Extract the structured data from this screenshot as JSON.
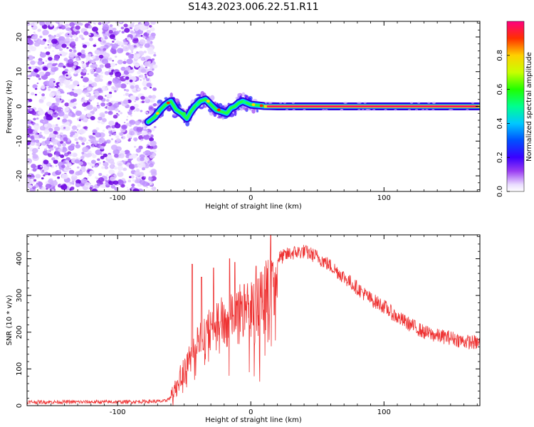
{
  "title": "S143.2023.006.22.51.R11",
  "chart_data": [
    {
      "type": "heatmap",
      "xlabel": "Height of straight line (km)",
      "ylabel": "Frequency (Hz)",
      "xlim": [
        -168,
        172
      ],
      "ylim": [
        -24.5,
        24.5
      ],
      "xticks": [
        -100,
        0,
        100
      ],
      "yticks": [
        -20,
        -10,
        0,
        10,
        20
      ],
      "noise_region_x": [
        -168,
        -75
      ],
      "signal_trace": {
        "x": [
          -77,
          -72,
          -68,
          -64,
          -60,
          -56,
          -52,
          -48,
          -45,
          -42,
          -38,
          -34,
          -30,
          -26,
          -22,
          -18,
          -15,
          -12,
          -9,
          -6,
          -3,
          0,
          5,
          10,
          20,
          40,
          80,
          120,
          172
        ],
        "y": [
          -4.5,
          -3,
          -1,
          0.5,
          1.5,
          -1,
          -2,
          -3.5,
          -1.5,
          0,
          1.5,
          2,
          0.5,
          -1,
          -1.5,
          -2,
          -0.5,
          0,
          1,
          1.5,
          1,
          0.5,
          0.3,
          0.1,
          0,
          0,
          0,
          0,
          0
        ]
      },
      "colorbar": {
        "label": "Normalized spectral amplitude",
        "ticks": [
          0.0,
          0.2,
          0.4,
          0.6,
          0.8
        ],
        "range": [
          0,
          1
        ]
      }
    },
    {
      "type": "line",
      "xlabel": "Height of straight line (km)",
      "ylabel": "SNR (10 * v/v)",
      "xlim": [
        -168,
        172
      ],
      "ylim": [
        0,
        465
      ],
      "xticks": [
        -100,
        0,
        100
      ],
      "yticks": [
        0,
        100,
        200,
        300,
        400
      ],
      "color": "#ee3333",
      "envelope": {
        "x": [
          -168,
          -100,
          -65,
          -58,
          -54,
          -50,
          -45,
          -40,
          -35,
          -30,
          -25,
          -20,
          -15,
          -10,
          -5,
          0,
          5,
          10,
          15,
          20,
          30,
          40,
          50,
          60,
          70,
          80,
          90,
          100,
          110,
          120,
          130,
          140,
          150,
          160,
          172
        ],
        "y": [
          10,
          10,
          12,
          25,
          60,
          110,
          150,
          180,
          210,
          230,
          250,
          260,
          270,
          290,
          310,
          320,
          340,
          360,
          380,
          400,
          415,
          420,
          405,
          380,
          350,
          320,
          290,
          270,
          240,
          220,
          200,
          190,
          185,
          175,
          170
        ]
      },
      "peaks": [
        {
          "x": -44,
          "y": 385
        },
        {
          "x": -37,
          "y": 350
        },
        {
          "x": -28,
          "y": 375
        },
        {
          "x": -16,
          "y": 400
        },
        {
          "x": -12,
          "y": 390
        },
        {
          "x": -5,
          "y": 330
        },
        {
          "x": 4,
          "y": 380
        },
        {
          "x": 15,
          "y": 465
        }
      ]
    }
  ]
}
